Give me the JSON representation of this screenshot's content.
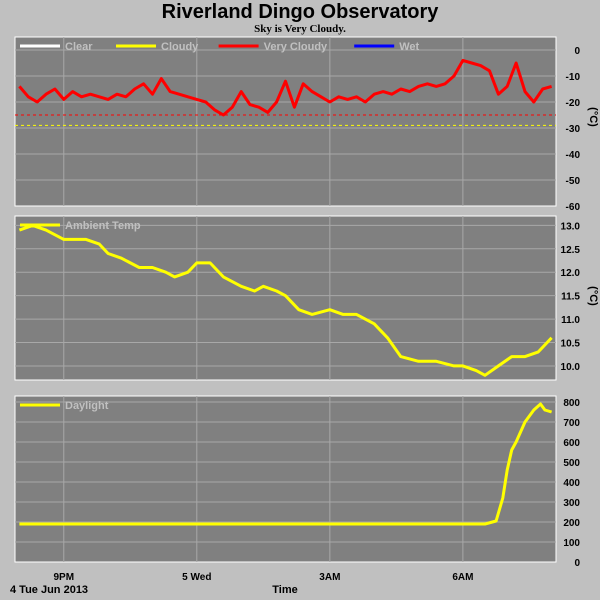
{
  "title": "Riverland Dingo Observatory",
  "subtitle": "Sky is Very Cloudy.",
  "x_axis": {
    "label": "Time",
    "date_label": "4 Tue Jun 2013",
    "ticks": [
      {
        "hour": 21,
        "label": "9PM"
      },
      {
        "hour": 24,
        "label": "5 Wed"
      },
      {
        "hour": 27,
        "label": "3AM"
      },
      {
        "hour": 30,
        "label": "6AM"
      }
    ],
    "range_hours": [
      19.9,
      32.1
    ]
  },
  "chart_data": [
    {
      "type": "line",
      "name": "sky",
      "unit": "(°C)",
      "legend": [
        {
          "label": "Clear",
          "color": "#ffffff"
        },
        {
          "label": "Cloudy",
          "color": "#ffff00"
        },
        {
          "label": "Very Cloudy",
          "color": "#ff0000"
        },
        {
          "label": "Wet",
          "color": "#0000ff"
        }
      ],
      "ylim": [
        -60,
        5
      ],
      "yticks": [
        0,
        -10,
        -20,
        -30,
        -40,
        -50,
        -60
      ],
      "thresholds": [
        {
          "value": -25,
          "color": "#ff0000"
        },
        {
          "value": -29,
          "color": "#ffff00"
        }
      ],
      "series": [
        {
          "color": "#ff0000",
          "x": [
            20.0,
            20.2,
            20.4,
            20.6,
            20.8,
            21.0,
            21.2,
            21.4,
            21.6,
            21.8,
            22.0,
            22.2,
            22.4,
            22.6,
            22.8,
            23.0,
            23.2,
            23.4,
            23.6,
            23.8,
            24.0,
            24.2,
            24.4,
            24.6,
            24.8,
            25.0,
            25.2,
            25.4,
            25.6,
            25.8,
            26.0,
            26.2,
            26.4,
            26.6,
            26.8,
            27.0,
            27.2,
            27.4,
            27.6,
            27.8,
            28.0,
            28.2,
            28.4,
            28.6,
            28.8,
            29.0,
            29.2,
            29.4,
            29.6,
            29.8,
            30.0,
            30.2,
            30.4,
            30.6,
            30.8,
            31.0,
            31.2,
            31.4,
            31.6,
            31.8,
            32.0
          ],
          "values": [
            -14,
            -18,
            -20,
            -17,
            -15,
            -19,
            -16,
            -18,
            -17,
            -18,
            -19,
            -17,
            -18,
            -15,
            -13,
            -17,
            -11,
            -16,
            -17,
            -18,
            -19,
            -20,
            -23,
            -25,
            -22,
            -16,
            -21,
            -22,
            -24,
            -20,
            -12,
            -22,
            -13,
            -16,
            -18,
            -20,
            -18,
            -19,
            -18,
            -20,
            -17,
            -16,
            -17,
            -15,
            -16,
            -14,
            -13,
            -14,
            -13,
            -10,
            -4,
            -5,
            -6,
            -8,
            -17,
            -14,
            -5,
            -16,
            -20,
            -15,
            -14
          ]
        }
      ]
    },
    {
      "type": "line",
      "name": "ambient",
      "unit": "(°C)",
      "legend": [
        {
          "label": "Ambient Temp",
          "color": "#ffff00"
        }
      ],
      "ylim": [
        9.7,
        13.2
      ],
      "yticks": [
        13.0,
        12.5,
        12.0,
        11.5,
        11.0,
        10.5,
        10.0
      ],
      "series": [
        {
          "color": "#ffff00",
          "x": [
            20.0,
            20.3,
            20.6,
            21.0,
            21.5,
            21.8,
            22.0,
            22.3,
            22.7,
            23.0,
            23.3,
            23.5,
            23.8,
            24.0,
            24.3,
            24.6,
            25.0,
            25.3,
            25.5,
            25.8,
            26.0,
            26.3,
            26.6,
            27.0,
            27.3,
            27.6,
            28.0,
            28.3,
            28.6,
            29.0,
            29.4,
            29.8,
            30.0,
            30.3,
            30.5,
            30.8,
            31.1,
            31.4,
            31.7,
            32.0
          ],
          "values": [
            12.9,
            13.0,
            12.9,
            12.7,
            12.7,
            12.6,
            12.4,
            12.3,
            12.1,
            12.1,
            12.0,
            11.9,
            12.0,
            12.2,
            12.2,
            11.9,
            11.7,
            11.6,
            11.7,
            11.6,
            11.5,
            11.2,
            11.1,
            11.2,
            11.1,
            11.1,
            10.9,
            10.6,
            10.2,
            10.1,
            10.1,
            10.0,
            10.0,
            9.9,
            9.8,
            10.0,
            10.2,
            10.2,
            10.3,
            10.6
          ]
        }
      ]
    },
    {
      "type": "line",
      "name": "daylight",
      "unit": "",
      "legend": [
        {
          "label": "Daylight",
          "color": "#ffff00"
        }
      ],
      "ylim": [
        0,
        830
      ],
      "yticks": [
        800,
        700,
        600,
        500,
        400,
        300,
        200,
        100,
        0
      ],
      "series": [
        {
          "color": "#ffff00",
          "x": [
            20.0,
            21.0,
            22.0,
            23.0,
            24.0,
            25.0,
            26.0,
            27.0,
            28.0,
            29.0,
            30.0,
            30.5,
            30.75,
            30.9,
            31.0,
            31.1,
            31.2,
            31.4,
            31.6,
            31.75,
            31.85,
            32.0
          ],
          "values": [
            190,
            190,
            190,
            190,
            190,
            190,
            190,
            190,
            190,
            190,
            190,
            190,
            205,
            320,
            460,
            560,
            600,
            700,
            760,
            790,
            760,
            750
          ]
        }
      ]
    }
  ]
}
